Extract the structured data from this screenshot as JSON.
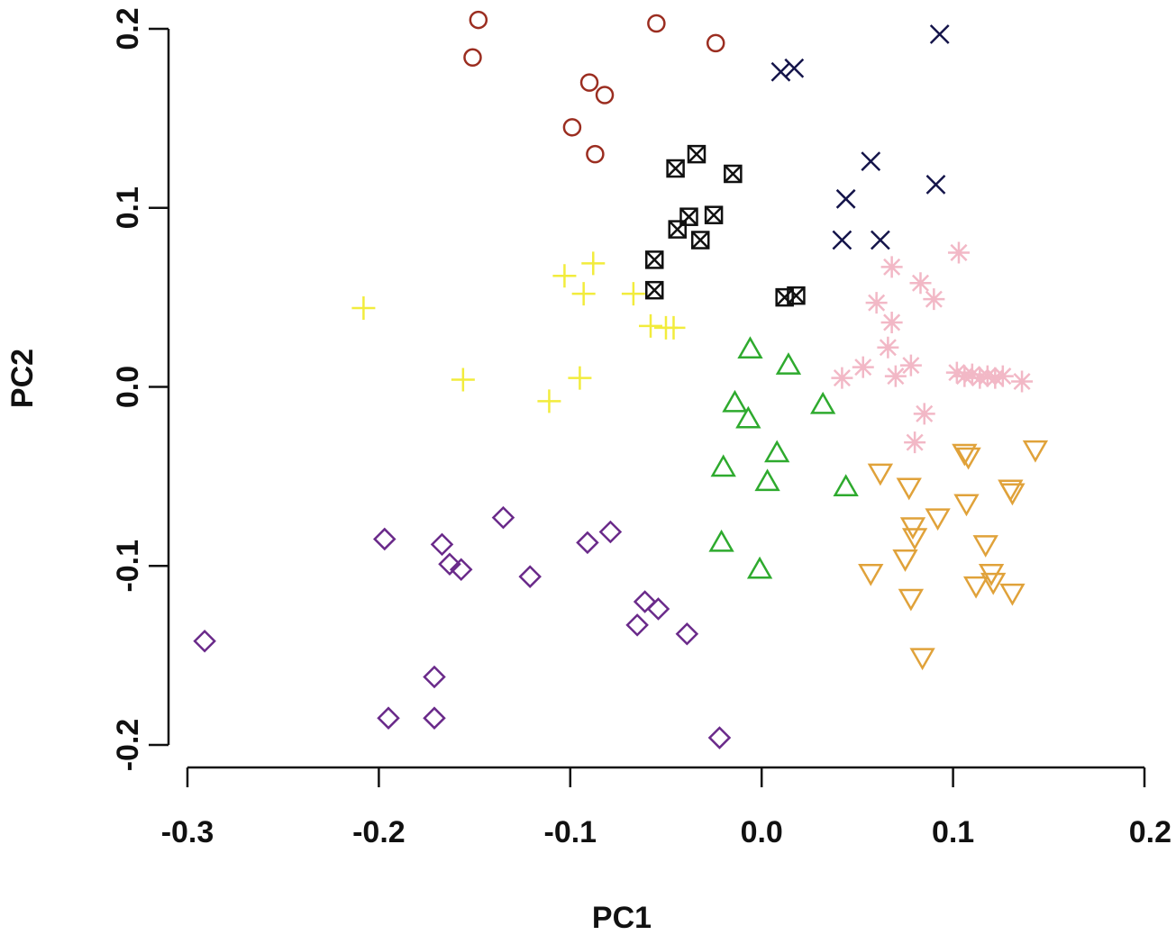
{
  "chart_data": {
    "type": "scatter",
    "title": "",
    "xlabel": "PC1",
    "ylabel": "PC2",
    "xlim": [
      -0.3,
      0.2
    ],
    "ylim": [
      -0.2,
      0.2
    ],
    "x_ticks": [
      -0.3,
      -0.2,
      -0.1,
      0.0,
      0.1,
      0.2
    ],
    "x_tick_labels": [
      "-0.3",
      "-0.2",
      "-0.1",
      "0.0",
      "0.1",
      "0.2"
    ],
    "y_ticks": [
      -0.2,
      -0.1,
      0.0,
      0.1,
      0.2
    ],
    "y_tick_labels": [
      "-0.2",
      "-0.1",
      "0.0",
      "0.1",
      "0.2"
    ],
    "grid": false,
    "legend": "none",
    "series": [
      {
        "name": "circle group",
        "marker": "circle",
        "color": "#9B2D20",
        "points": [
          [
            -0.148,
            0.205
          ],
          [
            -0.151,
            0.184
          ],
          [
            -0.055,
            0.203
          ],
          [
            -0.024,
            0.192
          ],
          [
            -0.09,
            0.17
          ],
          [
            -0.082,
            0.163
          ],
          [
            -0.099,
            0.145
          ],
          [
            -0.087,
            0.13
          ]
        ]
      },
      {
        "name": "x group",
        "marker": "x",
        "color": "#14144A",
        "points": [
          [
            0.093,
            0.197
          ],
          [
            0.01,
            0.176
          ],
          [
            0.017,
            0.178
          ],
          [
            0.057,
            0.126
          ],
          [
            0.044,
            0.105
          ],
          [
            0.091,
            0.113
          ],
          [
            0.042,
            0.082
          ],
          [
            0.062,
            0.082
          ]
        ]
      },
      {
        "name": "boxed x group",
        "marker": "boxx",
        "color": "#111111",
        "points": [
          [
            -0.034,
            0.13
          ],
          [
            -0.045,
            0.122
          ],
          [
            -0.015,
            0.119
          ],
          [
            -0.038,
            0.095
          ],
          [
            -0.025,
            0.096
          ],
          [
            -0.044,
            0.088
          ],
          [
            -0.032,
            0.082
          ],
          [
            -0.056,
            0.071
          ],
          [
            -0.056,
            0.054
          ],
          [
            0.012,
            0.05
          ],
          [
            0.018,
            0.051
          ]
        ]
      },
      {
        "name": "plus group",
        "marker": "plus",
        "color": "#F2EC3C",
        "points": [
          [
            -0.208,
            0.044
          ],
          [
            -0.103,
            0.062
          ],
          [
            -0.088,
            0.069
          ],
          [
            -0.093,
            0.052
          ],
          [
            -0.067,
            0.052
          ],
          [
            -0.058,
            0.034
          ],
          [
            -0.05,
            0.033
          ],
          [
            -0.046,
            0.033
          ],
          [
            -0.156,
            0.004
          ],
          [
            -0.095,
            0.005
          ],
          [
            -0.111,
            -0.008
          ]
        ]
      },
      {
        "name": "asterisk group",
        "marker": "asterisk",
        "color": "#F2B8C6",
        "points": [
          [
            0.103,
            0.075
          ],
          [
            0.068,
            0.067
          ],
          [
            0.083,
            0.058
          ],
          [
            0.06,
            0.047
          ],
          [
            0.09,
            0.049
          ],
          [
            0.068,
            0.036
          ],
          [
            0.066,
            0.022
          ],
          [
            0.078,
            0.012
          ],
          [
            0.053,
            0.011
          ],
          [
            0.07,
            0.006
          ],
          [
            0.042,
            0.005
          ],
          [
            0.102,
            0.008
          ],
          [
            0.106,
            0.006
          ],
          [
            0.11,
            0.007
          ],
          [
            0.114,
            0.005
          ],
          [
            0.118,
            0.006
          ],
          [
            0.122,
            0.005
          ],
          [
            0.126,
            0.006
          ],
          [
            0.136,
            0.003
          ],
          [
            0.085,
            -0.015
          ],
          [
            0.08,
            -0.031
          ]
        ]
      },
      {
        "name": "triangle up group",
        "marker": "triangle_up",
        "color": "#2EAA2E",
        "points": [
          [
            -0.006,
            0.021
          ],
          [
            0.014,
            0.012
          ],
          [
            -0.014,
            -0.009
          ],
          [
            -0.007,
            -0.018
          ],
          [
            0.032,
            -0.01
          ],
          [
            0.008,
            -0.037
          ],
          [
            -0.02,
            -0.045
          ],
          [
            0.003,
            -0.053
          ],
          [
            0.044,
            -0.056
          ],
          [
            -0.021,
            -0.087
          ],
          [
            -0.001,
            -0.102
          ]
        ]
      },
      {
        "name": "triangle down group",
        "marker": "triangle_down",
        "color": "#E0A23A",
        "points": [
          [
            0.143,
            -0.035
          ],
          [
            0.106,
            -0.037
          ],
          [
            0.108,
            -0.039
          ],
          [
            0.062,
            -0.048
          ],
          [
            0.077,
            -0.056
          ],
          [
            0.13,
            -0.057
          ],
          [
            0.131,
            -0.059
          ],
          [
            0.107,
            -0.065
          ],
          [
            0.092,
            -0.073
          ],
          [
            0.079,
            -0.078
          ],
          [
            0.08,
            -0.084
          ],
          [
            0.117,
            -0.088
          ],
          [
            0.075,
            -0.096
          ],
          [
            0.057,
            -0.104
          ],
          [
            0.12,
            -0.104
          ],
          [
            0.112,
            -0.111
          ],
          [
            0.121,
            -0.109
          ],
          [
            0.131,
            -0.115
          ],
          [
            0.078,
            -0.118
          ],
          [
            0.084,
            -0.151
          ]
        ]
      },
      {
        "name": "diamond group",
        "marker": "diamond",
        "color": "#6A2A8A",
        "points": [
          [
            -0.135,
            -0.073
          ],
          [
            -0.197,
            -0.085
          ],
          [
            -0.167,
            -0.088
          ],
          [
            -0.163,
            -0.099
          ],
          [
            -0.157,
            -0.102
          ],
          [
            -0.091,
            -0.087
          ],
          [
            -0.079,
            -0.081
          ],
          [
            -0.121,
            -0.106
          ],
          [
            -0.061,
            -0.12
          ],
          [
            -0.054,
            -0.124
          ],
          [
            -0.065,
            -0.133
          ],
          [
            -0.039,
            -0.138
          ],
          [
            -0.291,
            -0.142
          ],
          [
            -0.171,
            -0.162
          ],
          [
            -0.195,
            -0.185
          ],
          [
            -0.171,
            -0.185
          ],
          [
            -0.022,
            -0.196
          ]
        ]
      }
    ]
  }
}
